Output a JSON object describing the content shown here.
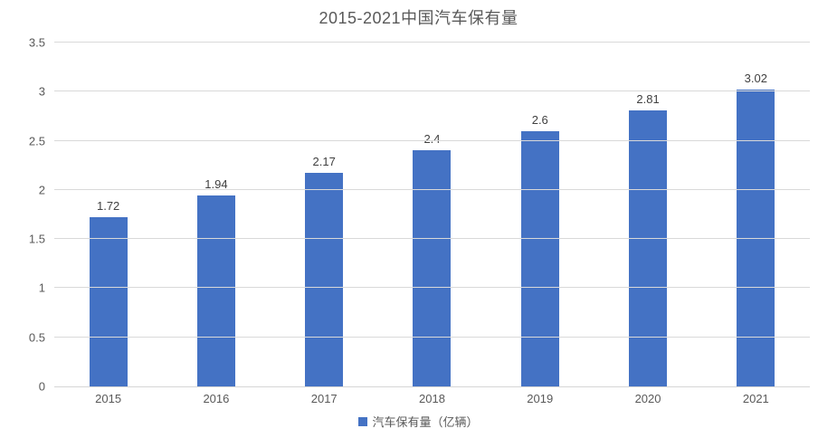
{
  "chart_data": {
    "type": "bar",
    "title": "2015-2021中国汽车保有量",
    "categories": [
      "2015",
      "2016",
      "2017",
      "2018",
      "2019",
      "2020",
      "2021"
    ],
    "series": [
      {
        "name": "汽车保有量（亿辆）",
        "values": [
          1.72,
          1.94,
          2.17,
          2.4,
          2.6,
          2.81,
          3.02
        ],
        "data_labels": [
          "1.72",
          "1.94",
          "2.17",
          "2.4",
          "2.6",
          "2.81",
          "3.02"
        ]
      }
    ],
    "xlabel": "",
    "ylabel": "",
    "ylim": [
      0,
      3.5
    ],
    "y_tick_labels": [
      "0",
      "0.5",
      "1",
      "1.5",
      "2",
      "2.5",
      "3",
      "3.5"
    ],
    "y_tick_values": [
      0,
      0.5,
      1,
      1.5,
      2,
      2.5,
      3,
      3.5
    ],
    "grid": true,
    "legend_position": "bottom"
  },
  "colors": {
    "bar": "#4472C4",
    "title_text": "#595959",
    "axis_text": "#595959",
    "data_label_text": "#404040",
    "gridline": "#d9d9d9"
  },
  "legend": {
    "label": "汽车保有量（亿辆）"
  }
}
